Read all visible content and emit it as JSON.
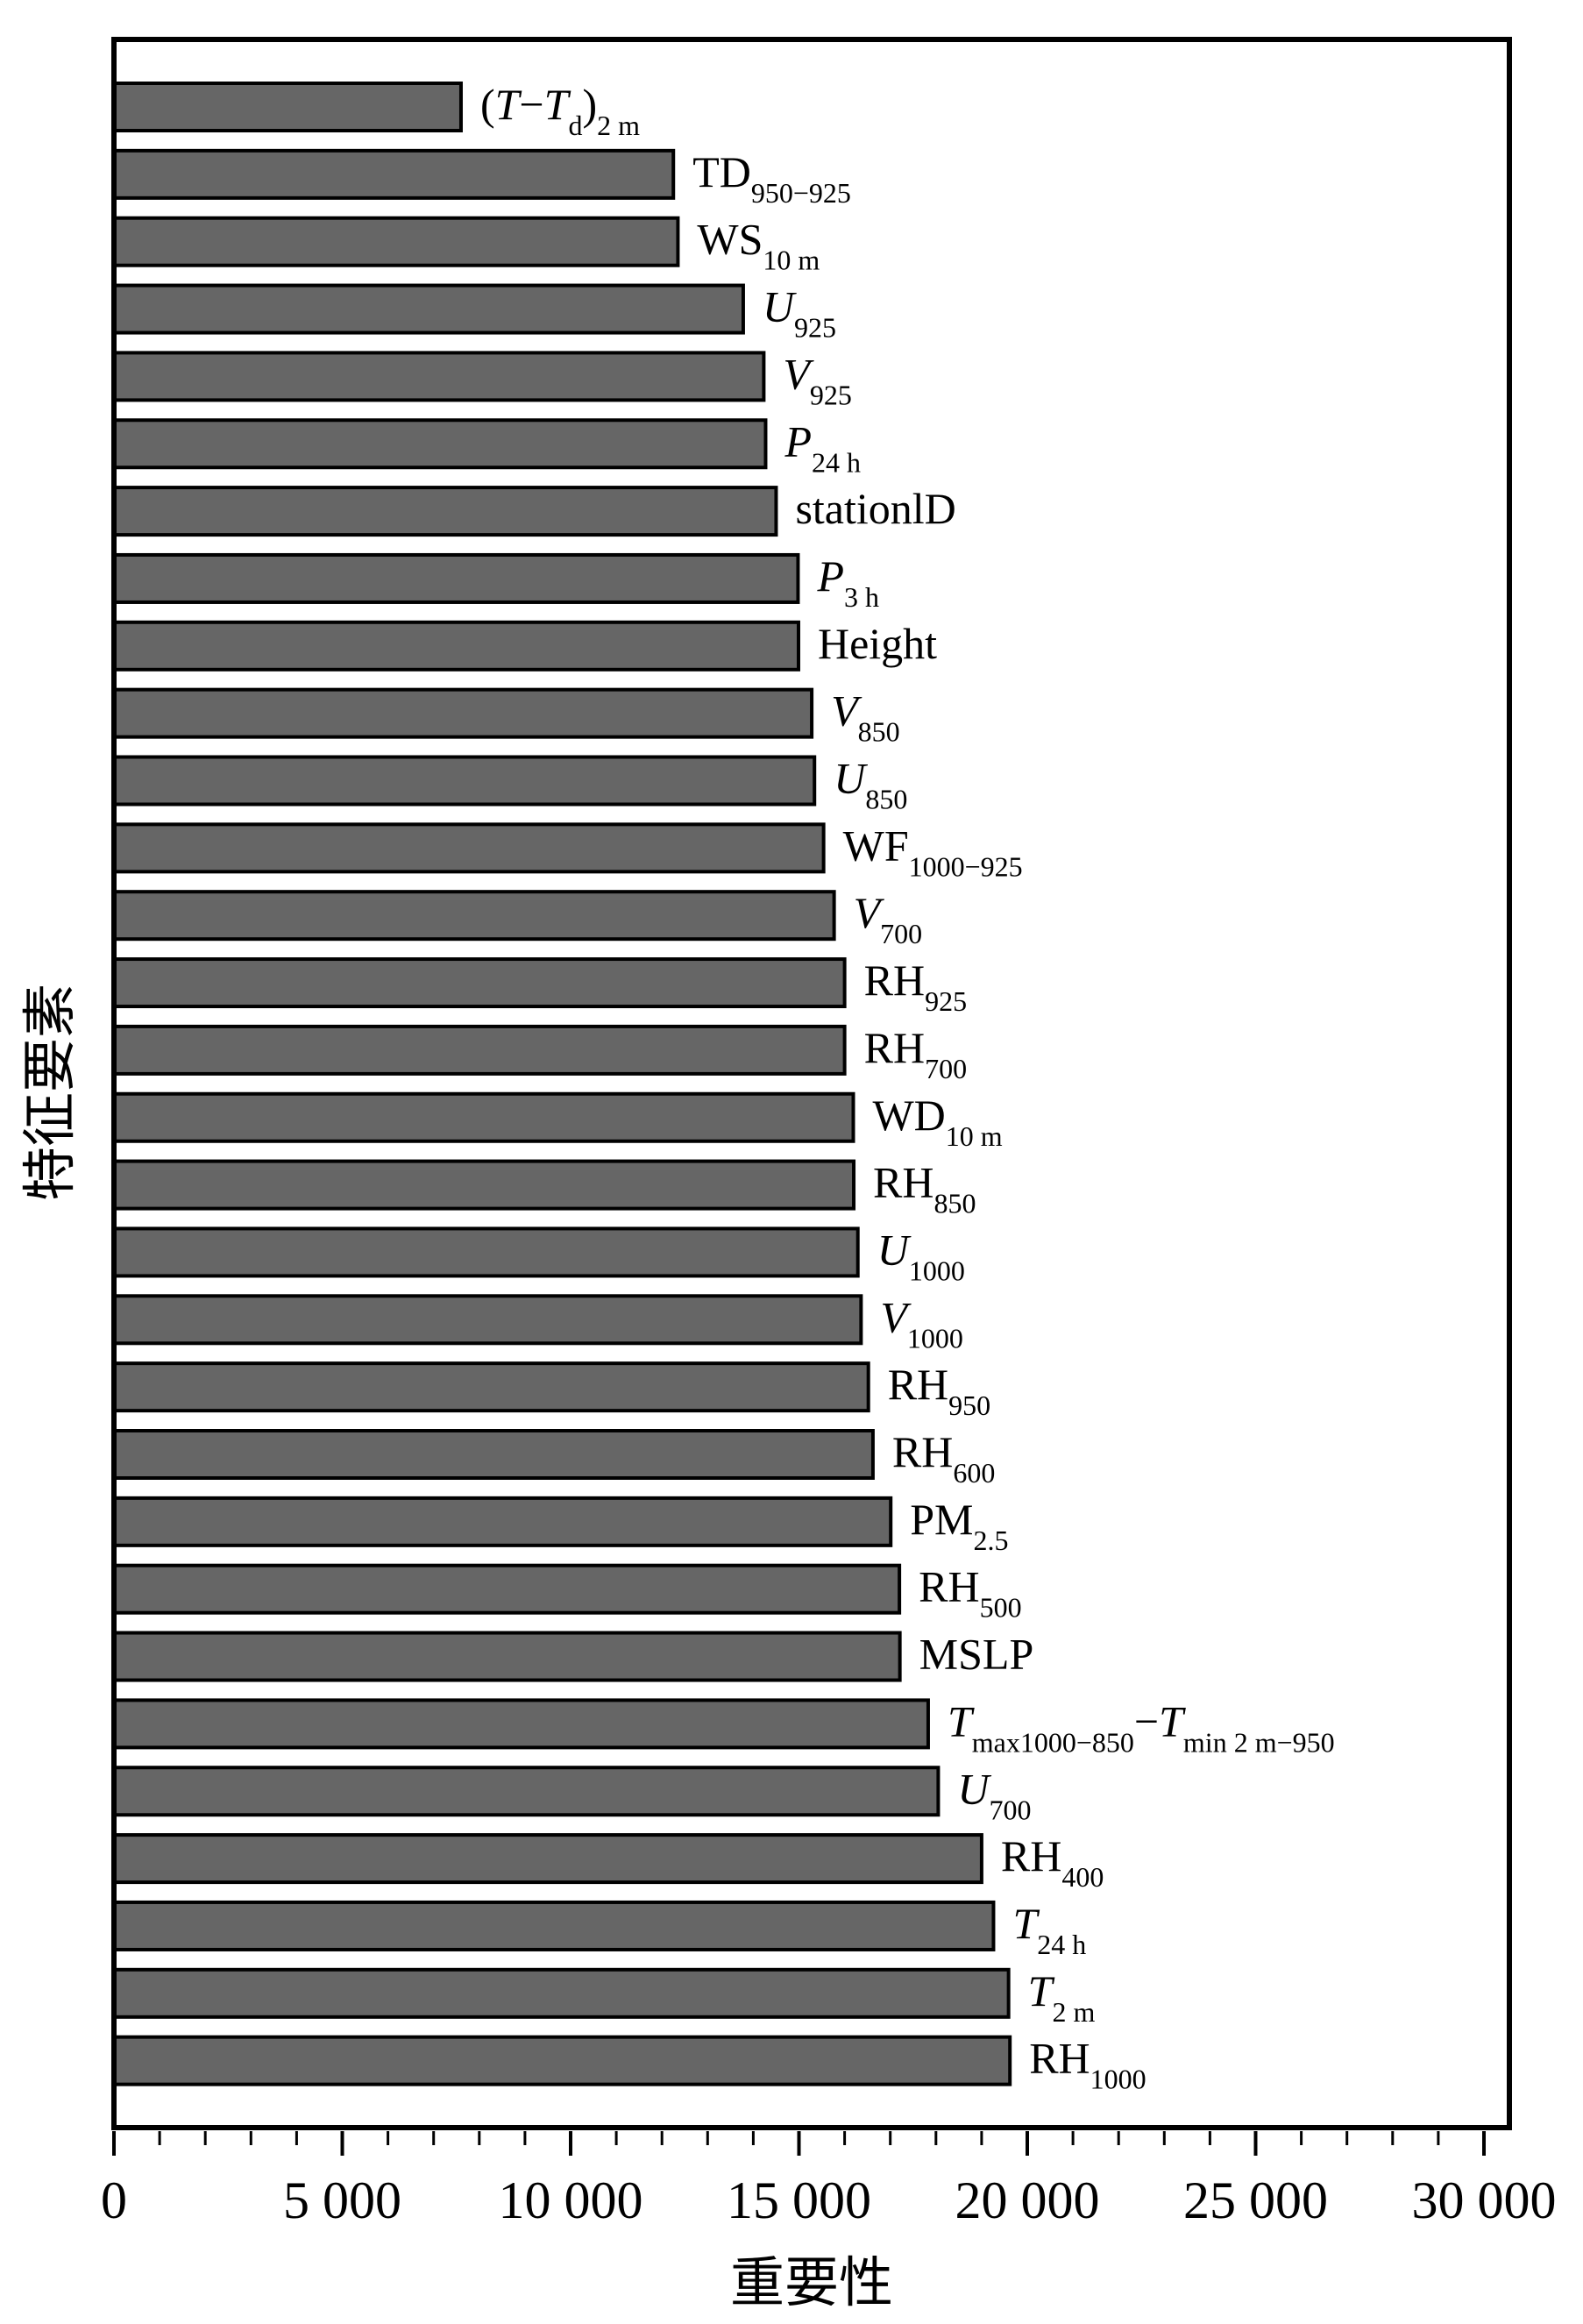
{
  "chart_data": {
    "type": "bar",
    "orientation": "horizontal",
    "title": "",
    "xlabel": "重要性",
    "ylabel": "特征要素",
    "xlim": [
      0,
      30000
    ],
    "xticks": [
      0,
      5000,
      10000,
      15000,
      20000,
      25000,
      30000
    ],
    "xtick_labels": [
      "0",
      "5 000",
      "10 000",
      "15 000",
      "20 000",
      "25 000",
      "30 000"
    ],
    "bar_color": "#666666",
    "grid": false,
    "categories": [
      "(T−Td)2 m",
      "TD950−925",
      "WS10 m",
      "U925",
      "V925",
      "P24 h",
      "stationID",
      "P3 h",
      "Height",
      "V850",
      "U850",
      "WF1000−925",
      "V700",
      "RH925",
      "RH700",
      "WD10 m",
      "RH850",
      "U1000",
      "V1000",
      "RH950",
      "RH600",
      "PM2.5",
      "RH500",
      "MSLP",
      "Tmax1000−850−Tmin 2 m−950",
      "U700",
      "RH400",
      "T24 h",
      "T2 m",
      "RH1000"
    ],
    "label_parts": [
      [
        {
          "t": "(",
          "i": false,
          "s": false
        },
        {
          "t": "T",
          "i": true,
          "s": false
        },
        {
          "t": "−",
          "i": false,
          "s": false
        },
        {
          "t": "T",
          "i": true,
          "s": false
        },
        {
          "t": "d",
          "i": false,
          "s": true
        },
        {
          "t": ")",
          "i": false,
          "s": false
        },
        {
          "t": "2 m",
          "i": false,
          "s": true
        }
      ],
      [
        {
          "t": "TD",
          "i": false,
          "s": false
        },
        {
          "t": "950−925",
          "i": false,
          "s": true
        }
      ],
      [
        {
          "t": "WS",
          "i": false,
          "s": false
        },
        {
          "t": "10 m",
          "i": false,
          "s": true
        }
      ],
      [
        {
          "t": "U",
          "i": true,
          "s": false
        },
        {
          "t": "925",
          "i": false,
          "s": true
        }
      ],
      [
        {
          "t": "V",
          "i": true,
          "s": false
        },
        {
          "t": "925",
          "i": false,
          "s": true
        }
      ],
      [
        {
          "t": "P",
          "i": true,
          "s": false
        },
        {
          "t": "24 h",
          "i": false,
          "s": true
        }
      ],
      [
        {
          "t": "stationlD",
          "i": false,
          "s": false
        }
      ],
      [
        {
          "t": "P",
          "i": true,
          "s": false
        },
        {
          "t": "3 h",
          "i": false,
          "s": true
        }
      ],
      [
        {
          "t": "Height",
          "i": false,
          "s": false
        }
      ],
      [
        {
          "t": "V",
          "i": true,
          "s": false
        },
        {
          "t": "850",
          "i": false,
          "s": true
        }
      ],
      [
        {
          "t": "U",
          "i": true,
          "s": false
        },
        {
          "t": "850",
          "i": false,
          "s": true
        }
      ],
      [
        {
          "t": "WF",
          "i": false,
          "s": false
        },
        {
          "t": "1000−925",
          "i": false,
          "s": true
        }
      ],
      [
        {
          "t": "V",
          "i": true,
          "s": false
        },
        {
          "t": "700",
          "i": false,
          "s": true
        }
      ],
      [
        {
          "t": "RH",
          "i": false,
          "s": false
        },
        {
          "t": "925",
          "i": false,
          "s": true
        }
      ],
      [
        {
          "t": "RH",
          "i": false,
          "s": false
        },
        {
          "t": "700",
          "i": false,
          "s": true
        }
      ],
      [
        {
          "t": "WD",
          "i": false,
          "s": false
        },
        {
          "t": "10 m",
          "i": false,
          "s": true
        }
      ],
      [
        {
          "t": "RH",
          "i": false,
          "s": false
        },
        {
          "t": "850",
          "i": false,
          "s": true
        }
      ],
      [
        {
          "t": "U",
          "i": true,
          "s": false
        },
        {
          "t": "1000",
          "i": false,
          "s": true
        }
      ],
      [
        {
          "t": "V",
          "i": true,
          "s": false
        },
        {
          "t": "1000",
          "i": false,
          "s": true
        }
      ],
      [
        {
          "t": "RH",
          "i": false,
          "s": false
        },
        {
          "t": "950",
          "i": false,
          "s": true
        }
      ],
      [
        {
          "t": "RH",
          "i": false,
          "s": false
        },
        {
          "t": "600",
          "i": false,
          "s": true
        }
      ],
      [
        {
          "t": "PM",
          "i": false,
          "s": false
        },
        {
          "t": "2.5",
          "i": false,
          "s": true
        }
      ],
      [
        {
          "t": "RH",
          "i": false,
          "s": false
        },
        {
          "t": "500",
          "i": false,
          "s": true
        }
      ],
      [
        {
          "t": "MSLP",
          "i": false,
          "s": false
        }
      ],
      [
        {
          "t": "T",
          "i": true,
          "s": false
        },
        {
          "t": "max1000−850",
          "i": false,
          "s": true
        },
        {
          "t": "−",
          "i": false,
          "s": false
        },
        {
          "t": "T",
          "i": true,
          "s": false
        },
        {
          "t": "min 2 m−950",
          "i": false,
          "s": true
        }
      ],
      [
        {
          "t": "U",
          "i": true,
          "s": false
        },
        {
          "t": "700",
          "i": false,
          "s": true
        }
      ],
      [
        {
          "t": "RH",
          "i": false,
          "s": false
        },
        {
          "t": "400",
          "i": false,
          "s": true
        }
      ],
      [
        {
          "t": "T",
          "i": true,
          "s": false
        },
        {
          "t": "24 h",
          "i": false,
          "s": true
        }
      ],
      [
        {
          "t": "T",
          "i": true,
          "s": false
        },
        {
          "t": "2 m",
          "i": false,
          "s": true
        }
      ],
      [
        {
          "t": "RH",
          "i": false,
          "s": false
        },
        {
          "t": "1000",
          "i": false,
          "s": true
        }
      ]
    ],
    "values": [
      7600,
      12250,
      12350,
      13780,
      14230,
      14270,
      14500,
      14980,
      14990,
      15280,
      15340,
      15540,
      15770,
      16000,
      16000,
      16190,
      16200,
      16290,
      16360,
      16520,
      16620,
      17010,
      17200,
      17210,
      17830,
      18050,
      19000,
      19260,
      19590,
      19620
    ]
  }
}
